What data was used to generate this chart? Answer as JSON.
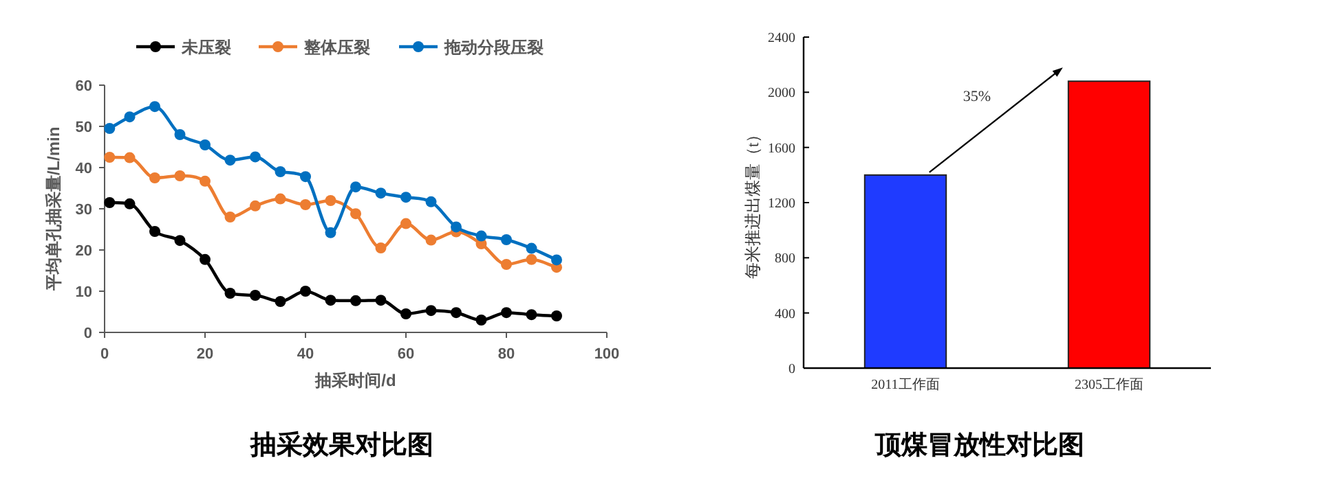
{
  "chart_data": [
    {
      "type": "line",
      "title": "抽采效果对比图",
      "xlabel": "抽采时间/d",
      "ylabel": "平均单孔抽采量/L/min",
      "x": [
        1,
        5,
        10,
        15,
        20,
        25,
        30,
        35,
        40,
        45,
        50,
        55,
        60,
        65,
        70,
        75,
        80,
        85,
        90
      ],
      "series": [
        {
          "name": "未压裂",
          "color": "#000000",
          "values": [
            31.5,
            31.2,
            24.5,
            22.3,
            17.7,
            9.5,
            9,
            7.5,
            10,
            7.8,
            7.7,
            7.8,
            4.5,
            5.3,
            4.8,
            3,
            4.8,
            4.3,
            4
          ]
        },
        {
          "name": "整体压裂",
          "color": "#ed7d31",
          "values": [
            42.5,
            42.4,
            37.5,
            38,
            36.7,
            28,
            30.7,
            32.4,
            31,
            32,
            28.8,
            20.5,
            26.4,
            22.4,
            24.4,
            21.5,
            16.5,
            17.7,
            15.8
          ]
        },
        {
          "name": "拖动分段压裂",
          "color": "#0070c0",
          "values": [
            49.5,
            52.3,
            54.8,
            48,
            45.5,
            41.8,
            42.6,
            39,
            37.8,
            24.2,
            35.3,
            33.8,
            32.8,
            31.7,
            25.6,
            23.4,
            22.5,
            20.4,
            17.6
          ]
        }
      ],
      "xlim": [
        0,
        100
      ],
      "xticks": [
        0,
        20,
        40,
        60,
        80,
        100
      ],
      "ylim": [
        0,
        60
      ],
      "yticks": [
        0,
        10,
        20,
        30,
        40,
        50,
        60
      ],
      "grid": false,
      "legend": "top",
      "marker": "circle",
      "line_style": "solid"
    },
    {
      "type": "bar",
      "title": "顶煤冒放性对比图",
      "ylabel": "每米推进出煤量（t）",
      "categories": [
        "2011工作面",
        "2305工作面"
      ],
      "values": [
        1400,
        2080
      ],
      "colors": [
        "#1f3bff",
        "#ff0000"
      ],
      "ylim": [
        0,
        2400
      ],
      "yticks": [
        0,
        400,
        800,
        1200,
        1600,
        2000,
        2400
      ],
      "grid": false,
      "annotations": [
        "35%"
      ]
    }
  ]
}
